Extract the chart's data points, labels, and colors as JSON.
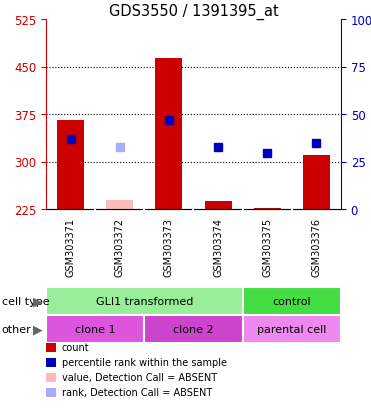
{
  "title": "GDS3550 / 1391395_at",
  "samples": [
    "GSM303371",
    "GSM303372",
    "GSM303373",
    "GSM303374",
    "GSM303375",
    "GSM303376"
  ],
  "ylim": [
    225,
    525
  ],
  "yticks_left": [
    225,
    300,
    375,
    450,
    525
  ],
  "yticks_right_pct": [
    "0",
    "25",
    "50",
    "75",
    "100%"
  ],
  "yticks_right_vals": [
    225,
    300,
    375,
    450,
    525
  ],
  "count_values": [
    365,
    240,
    463,
    237,
    227,
    310
  ],
  "count_absent": [
    false,
    true,
    false,
    false,
    false,
    false
  ],
  "percentile_values": [
    335,
    323,
    365,
    323,
    313,
    330
  ],
  "percentile_absent": [
    false,
    true,
    false,
    false,
    false,
    false
  ],
  "bar_base": 225,
  "count_color": "#cc0000",
  "count_absent_color": "#ffbbbb",
  "percentile_color": "#0000bb",
  "percentile_absent_color": "#aaaaff",
  "cell_type_groups": [
    {
      "label": "GLI1 transformed",
      "start": 0,
      "end": 4,
      "color": "#99ee99"
    },
    {
      "label": "control",
      "start": 4,
      "end": 6,
      "color": "#44dd44"
    }
  ],
  "other_groups": [
    {
      "label": "clone 1",
      "start": 0,
      "end": 2,
      "color": "#dd55dd"
    },
    {
      "label": "clone 2",
      "start": 2,
      "end": 4,
      "color": "#cc44cc"
    },
    {
      "label": "parental cell",
      "start": 4,
      "end": 6,
      "color": "#ee88ee"
    }
  ],
  "legend_items": [
    {
      "label": "count",
      "color": "#cc0000",
      "marker": "square"
    },
    {
      "label": "percentile rank within the sample",
      "color": "#0000bb",
      "marker": "square"
    },
    {
      "label": "value, Detection Call = ABSENT",
      "color": "#ffbbbb",
      "marker": "square"
    },
    {
      "label": "rank, Detection Call = ABSENT",
      "color": "#aaaaff",
      "marker": "square"
    }
  ],
  "bg_color": "#ffffff",
  "axis_color_left": "#cc0000",
  "axis_color_right": "#0000bb",
  "sample_bg": "#cccccc",
  "grid_lines": [
    300,
    375,
    450
  ]
}
